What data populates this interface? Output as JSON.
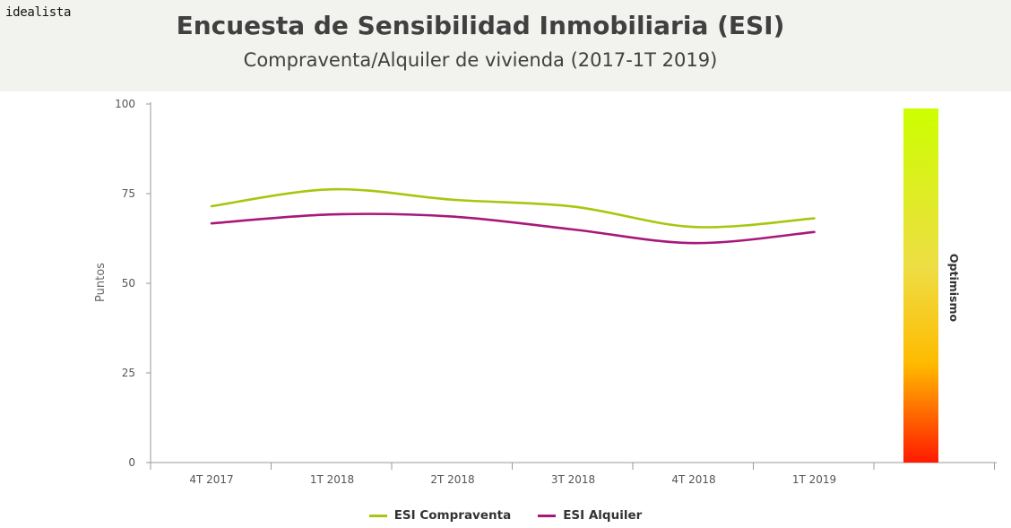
{
  "brand": "idealista",
  "title": "Encuesta de Sensibilidad Inmobiliaria (ESI)",
  "subtitle": "Compraventa/Alquiler de vivienda (2017-1T 2019)",
  "colors": {
    "compraventa": "#a5c80f",
    "alquiler": "#a8187a",
    "axis": "#9a9a9a",
    "text": "#404040",
    "header_bg": "#f2f2ef"
  },
  "chart_data": {
    "type": "line",
    "title": "Encuesta de Sensibilidad Inmobiliaria (ESI)",
    "subtitle": "Compraventa/Alquiler de vivienda (2017-1T 2019)",
    "categories": [
      "4T 2017",
      "1T 2018",
      "2T 2018",
      "3T 2018",
      "4T 2018",
      "1T 2019"
    ],
    "ylabel": "Puntos",
    "ylim": [
      0,
      100
    ],
    "yticks": [
      0,
      25,
      50,
      75,
      100
    ],
    "grid": false,
    "series": [
      {
        "name": "ESI Compraventa",
        "color": "#a5c80f",
        "values": [
          71.5,
          76.2,
          73.3,
          71.4,
          65.7,
          68.1
        ]
      },
      {
        "name": "ESI Alquiler",
        "color": "#a8187a",
        "values": [
          66.7,
          69.2,
          68.6,
          65.0,
          61.2,
          64.3
        ]
      }
    ],
    "gradient_bar": {
      "label": "Optimismo",
      "colors": [
        "#ccff00",
        "#eedd44",
        "#ffbb00",
        "#ff1a00"
      ]
    },
    "legend": "bottom-center"
  }
}
